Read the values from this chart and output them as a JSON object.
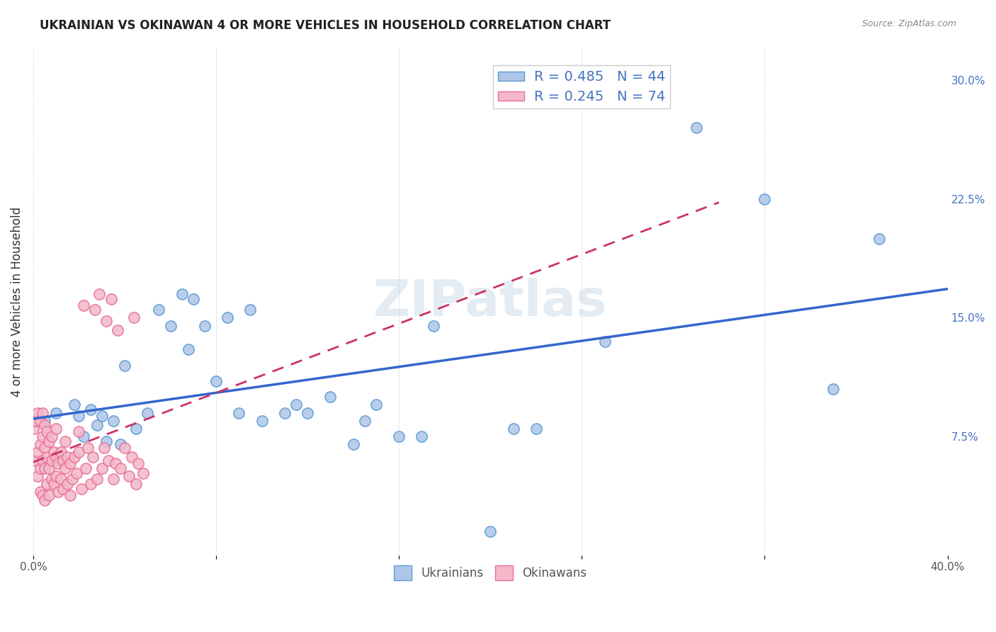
{
  "title": "UKRAINIAN VS OKINAWAN 4 OR MORE VEHICLES IN HOUSEHOLD CORRELATION CHART",
  "source": "Source: ZipAtlas.com",
  "ylabel": "4 or more Vehicles in Household",
  "watermark": "ZIPatlas",
  "xlim": [
    0.0,
    0.4
  ],
  "ylim": [
    0.0,
    0.32
  ],
  "xtick_positions": [
    0.0,
    0.08,
    0.16,
    0.24,
    0.32,
    0.4
  ],
  "xtick_labels": [
    "0.0%",
    "",
    "",
    "",
    "",
    "40.0%"
  ],
  "yticks_right": [
    0.075,
    0.15,
    0.225,
    0.3
  ],
  "ytick_labels_right": [
    "7.5%",
    "15.0%",
    "22.5%",
    "30.0%"
  ],
  "ukrainian_color": "#aec6e8",
  "ukrainian_edge_color": "#5b9bd5",
  "okinawan_color": "#f4b8c8",
  "okinawan_edge_color": "#e87097",
  "trend_blue": "#3366cc",
  "trend_pink": "#cc3366",
  "R_ukrainian": 0.485,
  "N_ukrainian": 44,
  "R_okinawan": 0.245,
  "N_okinawan": 74,
  "legend_label_ukrainian": "Ukrainians",
  "legend_label_okinawan": "Okinawans",
  "ukrainians_x": [
    0.005,
    0.01,
    0.012,
    0.018,
    0.02,
    0.022,
    0.025,
    0.028,
    0.03,
    0.032,
    0.035,
    0.038,
    0.04,
    0.045,
    0.05,
    0.055,
    0.06,
    0.065,
    0.068,
    0.07,
    0.075,
    0.08,
    0.085,
    0.09,
    0.095,
    0.1,
    0.11,
    0.115,
    0.12,
    0.13,
    0.14,
    0.145,
    0.15,
    0.16,
    0.17,
    0.175,
    0.2,
    0.21,
    0.22,
    0.25,
    0.29,
    0.32,
    0.35,
    0.37
  ],
  "ukrainians_y": [
    0.085,
    0.09,
    0.06,
    0.095,
    0.088,
    0.075,
    0.092,
    0.082,
    0.088,
    0.072,
    0.085,
    0.07,
    0.12,
    0.08,
    0.09,
    0.155,
    0.145,
    0.165,
    0.13,
    0.162,
    0.145,
    0.11,
    0.15,
    0.09,
    0.155,
    0.085,
    0.09,
    0.095,
    0.09,
    0.1,
    0.07,
    0.085,
    0.095,
    0.075,
    0.075,
    0.145,
    0.015,
    0.08,
    0.08,
    0.135,
    0.27,
    0.225,
    0.105,
    0.2
  ],
  "okinawans_x": [
    0.0,
    0.001,
    0.001,
    0.002,
    0.002,
    0.002,
    0.003,
    0.003,
    0.003,
    0.003,
    0.004,
    0.004,
    0.004,
    0.004,
    0.005,
    0.005,
    0.005,
    0.005,
    0.006,
    0.006,
    0.006,
    0.007,
    0.007,
    0.007,
    0.008,
    0.008,
    0.008,
    0.009,
    0.009,
    0.01,
    0.01,
    0.01,
    0.011,
    0.011,
    0.012,
    0.012,
    0.013,
    0.013,
    0.014,
    0.014,
    0.015,
    0.015,
    0.016,
    0.016,
    0.017,
    0.018,
    0.019,
    0.02,
    0.02,
    0.021,
    0.022,
    0.023,
    0.024,
    0.025,
    0.026,
    0.027,
    0.028,
    0.029,
    0.03,
    0.031,
    0.032,
    0.033,
    0.034,
    0.035,
    0.036,
    0.037,
    0.038,
    0.04,
    0.042,
    0.043,
    0.044,
    0.045,
    0.046,
    0.048
  ],
  "okinawans_y": [
    0.08,
    0.06,
    0.085,
    0.05,
    0.065,
    0.09,
    0.04,
    0.055,
    0.07,
    0.085,
    0.038,
    0.06,
    0.075,
    0.09,
    0.035,
    0.055,
    0.068,
    0.082,
    0.045,
    0.062,
    0.078,
    0.038,
    0.055,
    0.072,
    0.048,
    0.06,
    0.075,
    0.045,
    0.065,
    0.05,
    0.062,
    0.08,
    0.04,
    0.058,
    0.048,
    0.065,
    0.042,
    0.06,
    0.055,
    0.072,
    0.045,
    0.062,
    0.038,
    0.058,
    0.048,
    0.062,
    0.052,
    0.065,
    0.078,
    0.042,
    0.158,
    0.055,
    0.068,
    0.045,
    0.062,
    0.155,
    0.048,
    0.165,
    0.055,
    0.068,
    0.148,
    0.06,
    0.162,
    0.048,
    0.058,
    0.142,
    0.055,
    0.068,
    0.05,
    0.062,
    0.15,
    0.045,
    0.058,
    0.052
  ]
}
